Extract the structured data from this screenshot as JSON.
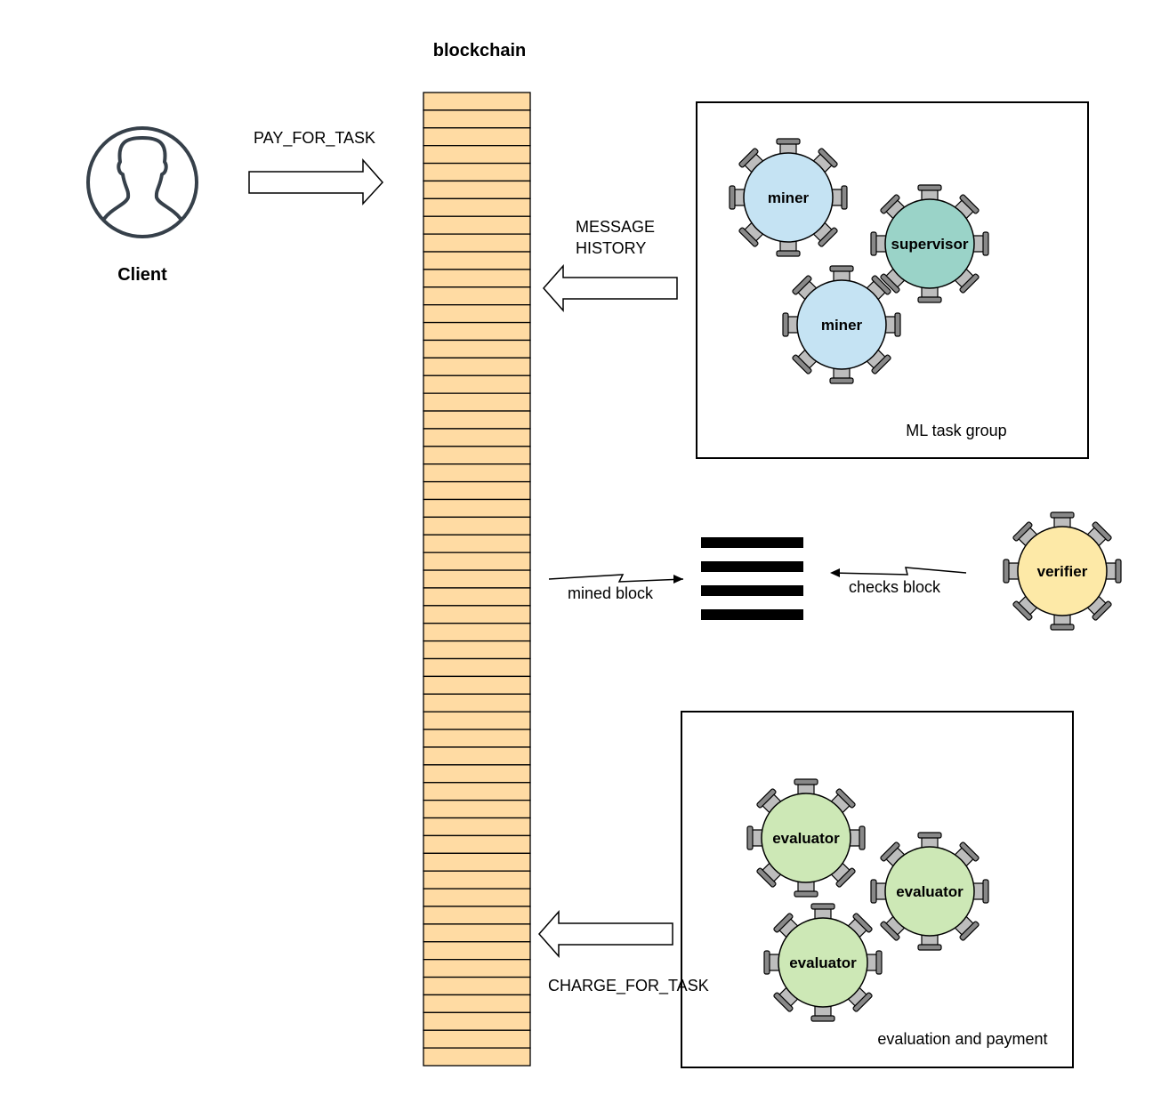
{
  "blockchain": {
    "title": "blockchain",
    "fill": "#FFDBA3",
    "block_count": 55
  },
  "client": {
    "label": "Client",
    "icon": "person-icon"
  },
  "arrows": {
    "pay": "PAY_FOR_TASK",
    "history_line1": "MESSAGE",
    "history_line2": "HISTORY",
    "mined": "mined block",
    "checks": "checks block",
    "charge": "CHARGE_FOR_TASK"
  },
  "groups": {
    "ml": {
      "label": "ML task group"
    },
    "evaluation": {
      "label": "evaluation and payment"
    }
  },
  "tables": [
    {
      "label": "miner",
      "color": "#C5E3F3"
    },
    {
      "label": "supervisor",
      "color": "#9AD3C8"
    },
    {
      "label": "miner",
      "color": "#C5E3F3"
    },
    {
      "label": "verifier",
      "color": "#FDE9A7"
    },
    {
      "label": "evaluator",
      "color": "#CDE8B6"
    },
    {
      "label": "evaluator",
      "color": "#CDE8B6"
    },
    {
      "label": "evaluator",
      "color": "#CDE8B6"
    }
  ],
  "mined_block_icon": "stacked-bars-icon"
}
